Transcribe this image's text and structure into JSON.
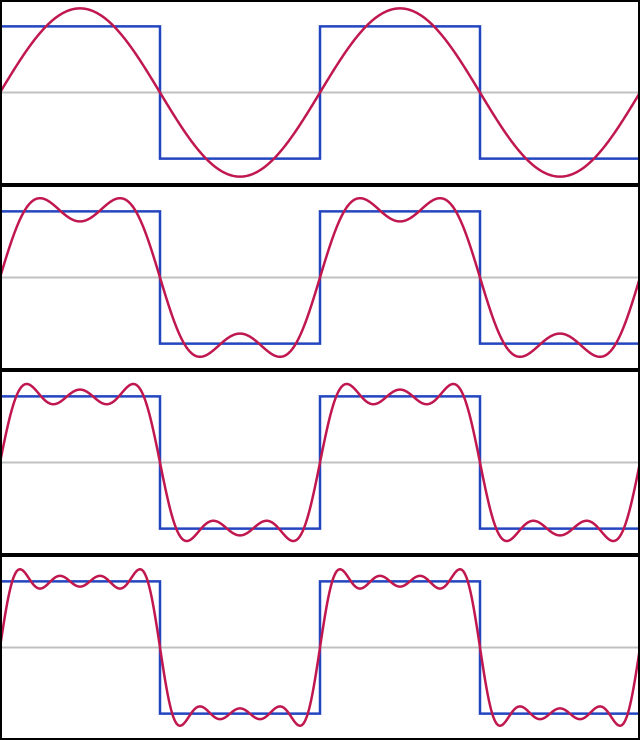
{
  "chart_data": [
    {
      "type": "line",
      "harmonics": [
        1
      ],
      "square_amplitude": 1,
      "xlim": [
        0,
        4
      ],
      "ylim": [
        -1.4,
        1.4
      ],
      "series": [
        {
          "role": "square",
          "color": "#2346c0",
          "x": [
            0,
            1,
            1,
            2,
            2,
            3,
            3,
            4
          ],
          "y": [
            1,
            1,
            -1,
            -1,
            1,
            1,
            -1,
            -1
          ]
        },
        {
          "role": "fourier-approximation",
          "color": "#c0174e"
        }
      ],
      "grid": false
    },
    {
      "type": "line",
      "harmonics": [
        1,
        3
      ],
      "square_amplitude": 1,
      "xlim": [
        0,
        4
      ],
      "ylim": [
        -1.4,
        1.4
      ],
      "series": [
        {
          "role": "square",
          "color": "#2346c0",
          "x": [
            0,
            1,
            1,
            2,
            2,
            3,
            3,
            4
          ],
          "y": [
            1,
            1,
            -1,
            -1,
            1,
            1,
            -1,
            -1
          ]
        },
        {
          "role": "fourier-approximation",
          "color": "#c0174e"
        }
      ],
      "grid": false
    },
    {
      "type": "line",
      "harmonics": [
        1,
        3,
        5
      ],
      "square_amplitude": 1,
      "xlim": [
        0,
        4
      ],
      "ylim": [
        -1.4,
        1.4
      ],
      "series": [
        {
          "role": "square",
          "color": "#2346c0",
          "x": [
            0,
            1,
            1,
            2,
            2,
            3,
            3,
            4
          ],
          "y": [
            1,
            1,
            -1,
            -1,
            1,
            1,
            -1,
            -1
          ]
        },
        {
          "role": "fourier-approximation",
          "color": "#c0174e"
        }
      ],
      "grid": false
    },
    {
      "type": "line",
      "harmonics": [
        1,
        3,
        5,
        7
      ],
      "square_amplitude": 1,
      "xlim": [
        0,
        4
      ],
      "ylim": [
        -1.4,
        1.4
      ],
      "series": [
        {
          "role": "square",
          "color": "#2346c0",
          "x": [
            0,
            1,
            1,
            2,
            2,
            3,
            3,
            4
          ],
          "y": [
            1,
            1,
            -1,
            -1,
            1,
            1,
            -1,
            -1
          ]
        },
        {
          "role": "fourier-approximation",
          "color": "#c0174e"
        }
      ],
      "grid": false
    }
  ],
  "colors": {
    "axis": "#c0c0c0",
    "border": "#000000",
    "background": "#ffffff"
  }
}
